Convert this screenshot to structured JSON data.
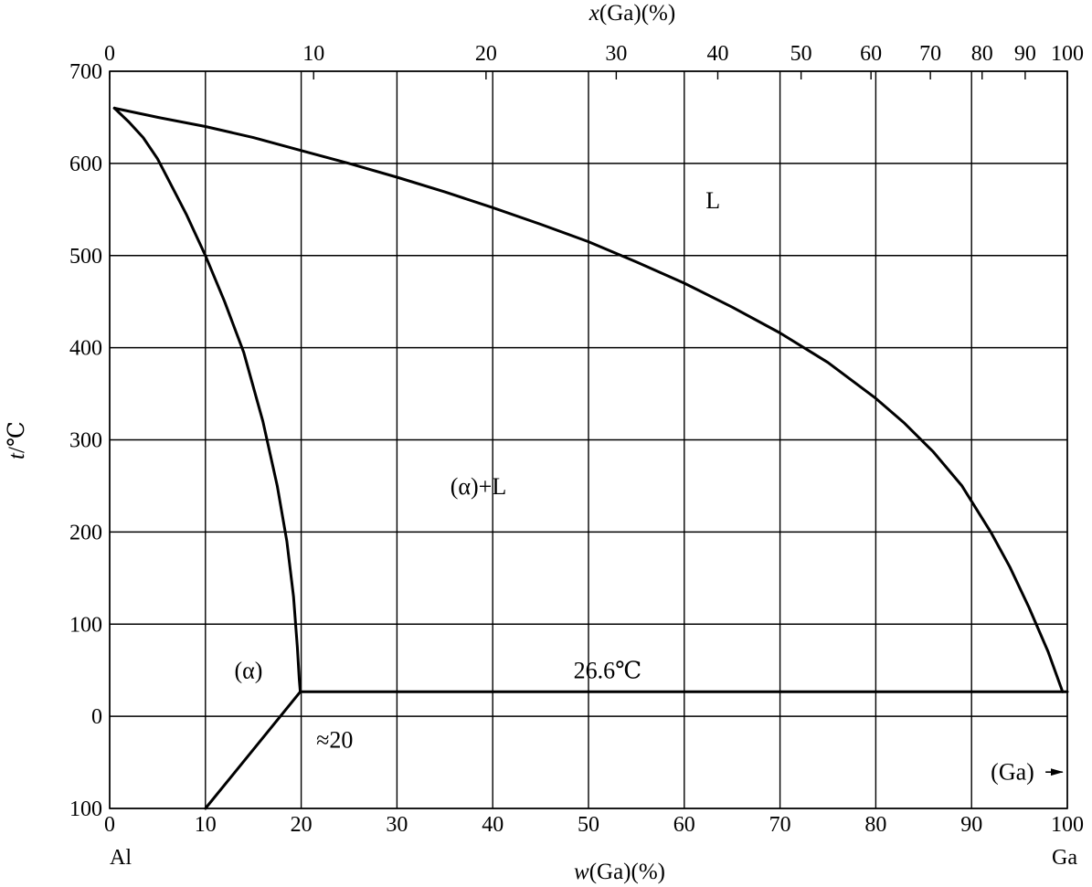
{
  "chart_data": {
    "type": "line",
    "title": "",
    "xlabel_bottom_prefix": "w",
    "xlabel_bottom_suffix": "(Ga)(%)",
    "xlabel_top_prefix": "x",
    "xlabel_top_suffix": "(Ga)(%)",
    "ylabel_prefix": "t",
    "ylabel_suffix": "/℃",
    "xlim": [
      0,
      100
    ],
    "ylim": [
      -100,
      700
    ],
    "grid": true,
    "x_ticks": [
      0,
      10,
      20,
      30,
      40,
      50,
      60,
      70,
      80,
      90,
      100
    ],
    "x_tick_labels": [
      "0",
      "10",
      "20",
      "30",
      "40",
      "50",
      "60",
      "70",
      "80",
      "90",
      "100"
    ],
    "y_ticks": [
      -100,
      0,
      100,
      200,
      300,
      400,
      500,
      600,
      700
    ],
    "y_tick_labels": [
      "100",
      "0",
      "100",
      "200",
      "300",
      "400",
      "500",
      "600",
      "700"
    ],
    "top_ticks": [
      {
        "label": "0",
        "w": 0
      },
      {
        "label": "10",
        "w": 21.3
      },
      {
        "label": "20",
        "w": 39.3
      },
      {
        "label": "30",
        "w": 52.9
      },
      {
        "label": "40",
        "w": 63.5
      },
      {
        "label": "50",
        "w": 72.2
      },
      {
        "label": "60",
        "w": 79.5
      },
      {
        "label": "70",
        "w": 85.7
      },
      {
        "label": "80",
        "w": 91.1
      },
      {
        "label": "90",
        "w": 95.6
      },
      {
        "label": "100",
        "w": 100
      }
    ],
    "end_labels": {
      "left": "Al",
      "right": "Ga"
    },
    "series": [
      {
        "name": "liquidus",
        "points": [
          [
            0.5,
            660
          ],
          [
            5,
            650
          ],
          [
            10,
            640
          ],
          [
            15,
            628
          ],
          [
            20,
            614
          ],
          [
            25,
            600
          ],
          [
            30,
            585
          ],
          [
            35,
            569
          ],
          [
            40,
            552
          ],
          [
            45,
            534
          ],
          [
            50,
            515
          ],
          [
            55,
            493
          ],
          [
            60,
            470
          ],
          [
            65,
            444
          ],
          [
            70,
            416
          ],
          [
            75,
            384
          ],
          [
            80,
            345
          ],
          [
            83,
            318
          ],
          [
            86,
            287
          ],
          [
            89,
            250
          ],
          [
            92,
            200
          ],
          [
            94,
            162
          ],
          [
            96,
            118
          ],
          [
            98,
            70
          ],
          [
            99.5,
            26.6
          ]
        ]
      },
      {
        "name": "solidus",
        "points": [
          [
            0.5,
            660
          ],
          [
            2,
            645
          ],
          [
            3.5,
            628
          ],
          [
            5,
            605
          ],
          [
            6.5,
            575
          ],
          [
            8,
            545
          ],
          [
            10,
            500
          ],
          [
            12,
            450
          ],
          [
            14,
            395
          ],
          [
            16,
            320
          ],
          [
            17.5,
            250
          ],
          [
            18.5,
            190
          ],
          [
            19.2,
            130
          ],
          [
            19.6,
            75
          ],
          [
            19.8,
            40
          ],
          [
            19.9,
            26.6
          ]
        ]
      },
      {
        "name": "eutectic",
        "points": [
          [
            19.9,
            26.6
          ],
          [
            100,
            26.6
          ]
        ]
      },
      {
        "name": "solvus",
        "points": [
          [
            19.9,
            26.6
          ],
          [
            10,
            -100
          ]
        ]
      }
    ],
    "annotations": [
      {
        "text": "L",
        "x": 63,
        "y": 560
      },
      {
        "text": "(α)+L",
        "x": 38.5,
        "y": 250
      },
      {
        "text": "(α)",
        "x": 14.5,
        "y": 50
      },
      {
        "text": "26.6℃",
        "x": 52,
        "y": 50
      },
      {
        "text": "≈20",
        "x": 23.5,
        "y": -25
      },
      {
        "text": "(Ga)",
        "x": 92,
        "y": -60
      }
    ]
  }
}
